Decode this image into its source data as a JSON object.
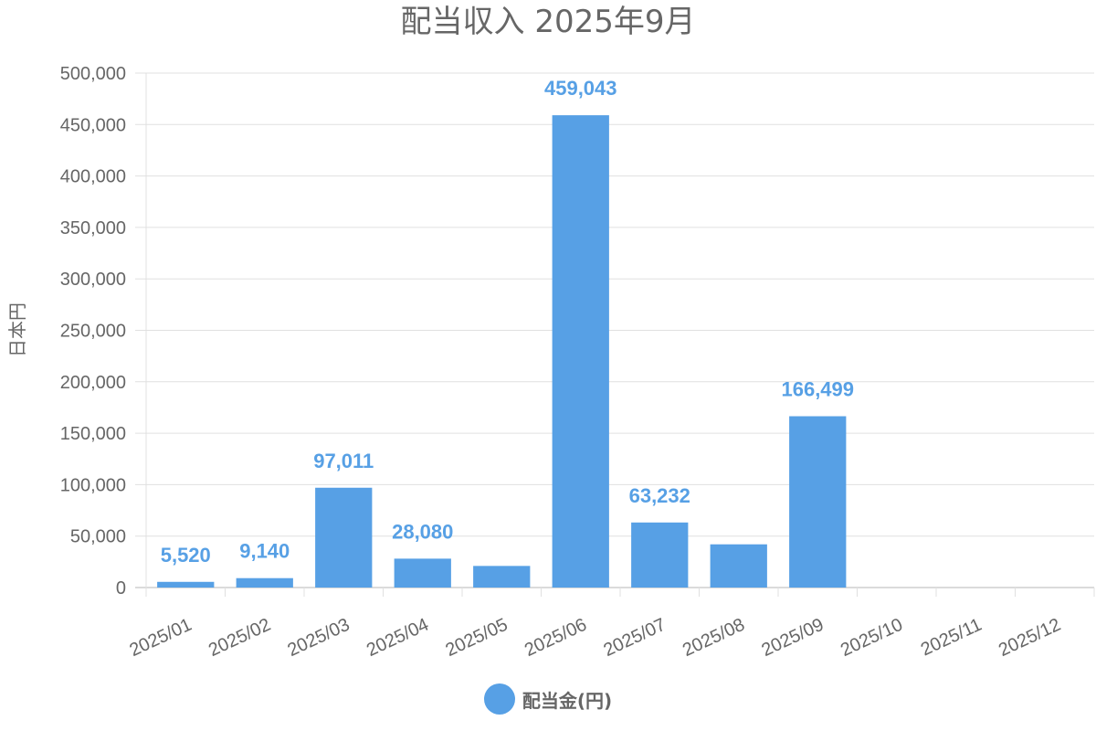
{
  "chart_data": {
    "type": "bar",
    "title": "配当収入 2025年9月",
    "ylabel": "日本円",
    "xlabel": "",
    "categories": [
      "2025/01",
      "2025/02",
      "2025/03",
      "2025/04",
      "2025/05",
      "2025/06",
      "2025/07",
      "2025/08",
      "2025/09",
      "2025/10",
      "2025/11",
      "2025/12"
    ],
    "series": [
      {
        "name": "配当金(円)",
        "values": [
          5520,
          9140,
          97011,
          28080,
          21000,
          459043,
          63232,
          42000,
          166499,
          null,
          null,
          null
        ],
        "labels": [
          "5,520",
          "9,140",
          "97,011",
          "28,080",
          "",
          "459,043",
          "63,232",
          "",
          "166,499",
          "",
          "",
          ""
        ]
      }
    ],
    "ylim": [
      0,
      500000
    ],
    "yticks": [
      "0",
      "50,000",
      "100,000",
      "150,000",
      "200,000",
      "250,000",
      "300,000",
      "350,000",
      "400,000",
      "450,000",
      "500,000"
    ],
    "grid": true,
    "legend": "bottom-center",
    "colors": {
      "bar": "#57a0e5",
      "label": "#57a0e5",
      "text": "#666666",
      "grid": "#e0e0e0"
    }
  }
}
